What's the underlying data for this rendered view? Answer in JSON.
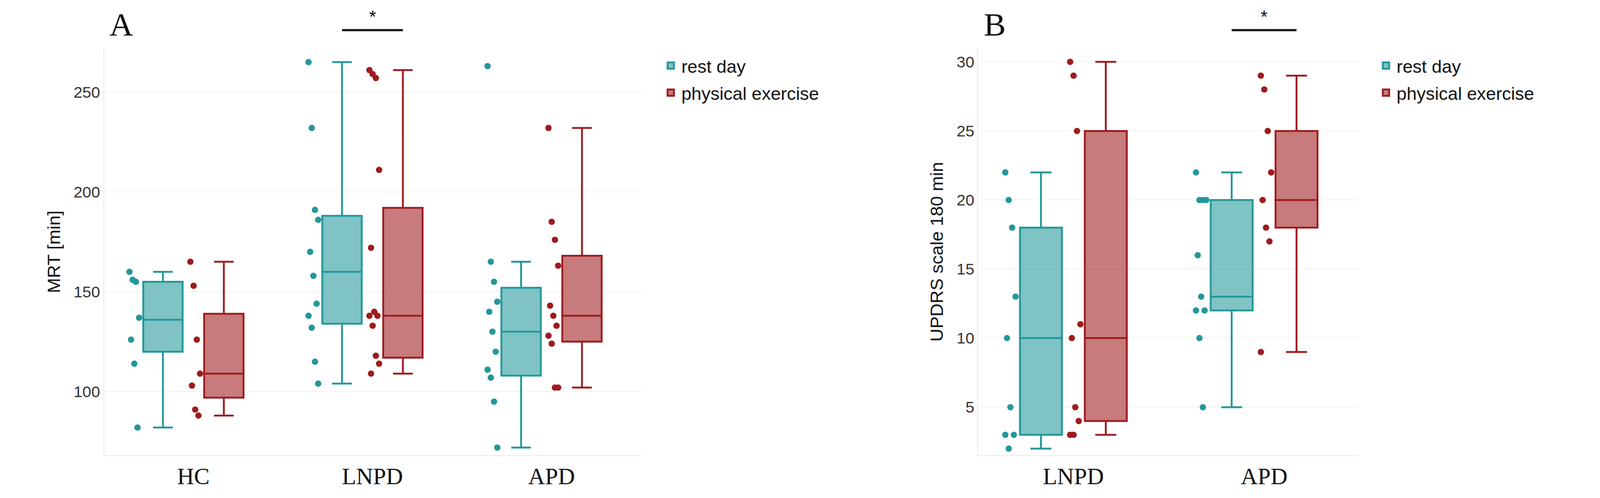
{
  "chart_data": [
    {
      "type": "box",
      "title": "A",
      "y_label": "MRT [min]",
      "categories": [
        "HC",
        "LNPD",
        "APD"
      ],
      "ylim": [
        68,
        272
      ],
      "yticks": [
        100,
        150,
        200,
        250
      ],
      "grid": true,
      "legend": "right",
      "marker": "circle",
      "annotations": [
        {
          "text": "*",
          "category": "LNPD"
        }
      ],
      "series": [
        {
          "name": "rest day",
          "color": "#23979a",
          "values": [
            {
              "lower": 82,
              "q1": 120,
              "median": 136,
              "q3": 155,
              "upper": 160,
              "points": [
                160,
                156,
                155,
                137,
                126,
                114,
                82
              ]
            },
            {
              "lower": 104,
              "q1": 134,
              "median": 160,
              "q3": 188,
              "upper": 265,
              "points": [
                265,
                232,
                191,
                186,
                170,
                158,
                144,
                138,
                132,
                115,
                104
              ]
            },
            {
              "lower": 72,
              "q1": 108,
              "median": 130,
              "q3": 152,
              "upper": 165,
              "points": [
                263,
                165,
                155,
                145,
                140,
                130,
                120,
                111,
                107,
                95,
                72
              ]
            }
          ]
        },
        {
          "name": "physical exercise",
          "color": "#9e1b1e",
          "values": [
            {
              "lower": 88,
              "q1": 97,
              "median": 109,
              "q3": 139,
              "upper": 165,
              "points": [
                165,
                153,
                126,
                109,
                103,
                91,
                88
              ]
            },
            {
              "lower": 109,
              "q1": 117,
              "median": 138,
              "q3": 192,
              "upper": 261,
              "points": [
                261,
                259,
                257,
                211,
                172,
                140,
                138,
                138,
                133,
                118,
                114,
                109
              ]
            },
            {
              "lower": 102,
              "q1": 125,
              "median": 138,
              "q3": 168,
              "upper": 232,
              "points": [
                232,
                185,
                176,
                163,
                143,
                138,
                133,
                128,
                124,
                102,
                102
              ]
            }
          ]
        }
      ]
    },
    {
      "type": "box",
      "title": "B",
      "y_label": "UPDRS scale 180 min",
      "categories": [
        "LNPD",
        "APD"
      ],
      "ylim": [
        1.5,
        31
      ],
      "yticks": [
        5,
        10,
        15,
        20,
        25,
        30
      ],
      "grid": true,
      "legend": "right",
      "marker": "circle",
      "annotations": [
        {
          "text": "*",
          "category": "APD"
        }
      ],
      "series": [
        {
          "name": "rest day",
          "color": "#23979a",
          "values": [
            {
              "lower": 2,
              "q1": 3,
              "median": 10,
              "q3": 18,
              "upper": 22,
              "points": [
                22,
                20,
                18,
                13,
                10,
                5,
                3,
                3,
                2
              ]
            },
            {
              "lower": 5,
              "q1": 12,
              "median": 13,
              "q3": 20,
              "upper": 22,
              "points": [
                22,
                20,
                20,
                20,
                16,
                13,
                12,
                12,
                10,
                5
              ]
            }
          ]
        },
        {
          "name": "physical exercise",
          "color": "#9e1b1e",
          "values": [
            {
              "lower": 3,
              "q1": 4,
              "median": 10,
              "q3": 25,
              "upper": 30,
              "points": [
                30,
                29,
                25,
                11,
                10,
                5,
                4,
                3,
                3
              ]
            },
            {
              "lower": 9,
              "q1": 18,
              "median": 20,
              "q3": 25,
              "upper": 29,
              "points": [
                29,
                28,
                25,
                22,
                20,
                18,
                17,
                9
              ]
            }
          ]
        }
      ]
    }
  ]
}
